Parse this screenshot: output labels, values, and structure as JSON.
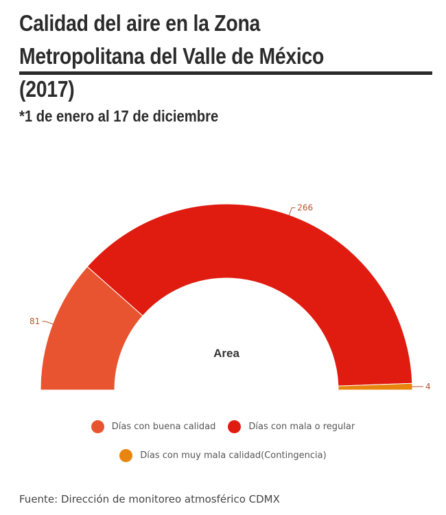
{
  "page": {
    "title": "Calidad del aire en la Zona Metropolitana del Valle de México (2017)",
    "subtitle": "*1 de enero al 17 de diciembre",
    "source": "Fuente: Dirección de monitoreo atmosférico CDMX"
  },
  "chart_data": {
    "type": "pie",
    "variant": "semi-donut",
    "center_label": "Area",
    "categories": [
      "Días con buena calidad",
      "Días con mala o regular",
      "Días con muy mala calidad(Contingencia)"
    ],
    "values": [
      81,
      266,
      4
    ],
    "data_labels": [
      "81",
      "266",
      "4"
    ],
    "colors": [
      "#e8542f",
      "#e01b10",
      "#e8850f"
    ],
    "label_color": "#b5532c",
    "legend_placement": "bottom"
  }
}
